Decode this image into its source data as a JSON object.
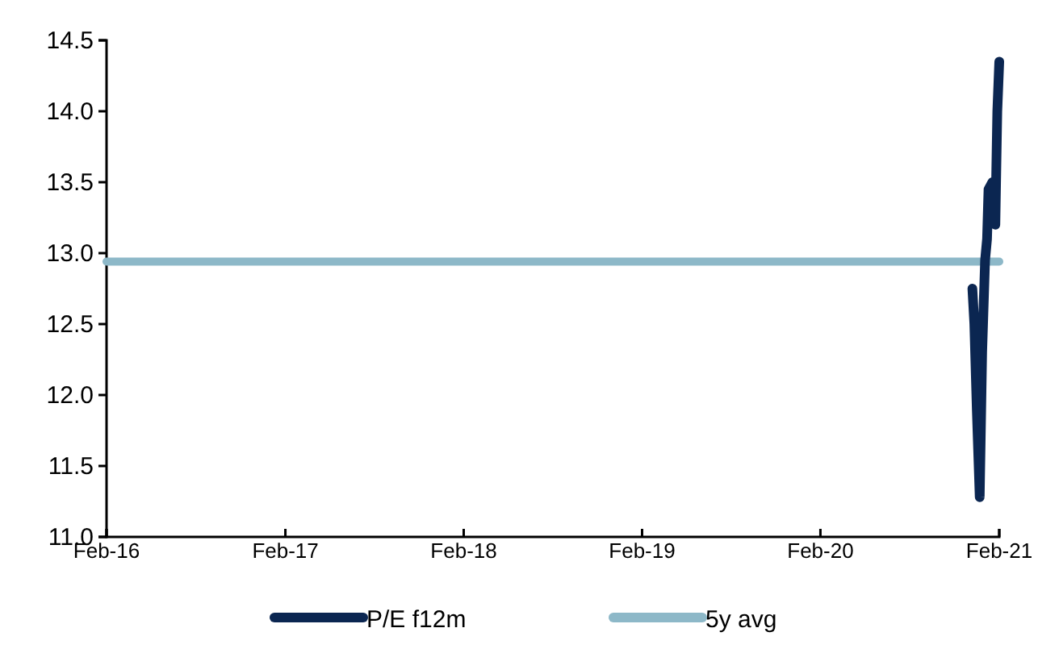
{
  "chart_data": {
    "type": "line",
    "x": [
      "2016-02-01",
      "2021-02-01"
    ],
    "series": [
      {
        "name": "P/E f12m",
        "color": "#0b2651",
        "x": [
          "2020-12-08",
          "2020-12-12",
          "2020-12-17",
          "2020-12-23",
          "2020-12-28",
          "2021-01-03",
          "2021-01-07",
          "2021-01-10",
          "2021-01-18",
          "2021-01-24",
          "2021-01-28",
          "2021-02-01"
        ],
        "values": [
          12.75,
          12.5,
          11.9,
          11.28,
          12.3,
          12.95,
          13.1,
          13.45,
          13.5,
          13.2,
          14.0,
          14.35
        ]
      },
      {
        "name": "5y avg",
        "color": "#8db8c8",
        "values": [
          12.94,
          12.94
        ]
      }
    ],
    "ylim": [
      11.0,
      14.5
    ],
    "yticks": [
      {
        "value": 11,
        "label": "11.0"
      },
      {
        "value": 11.5,
        "label": "11.5"
      },
      {
        "value": 12,
        "label": "12.0"
      },
      {
        "value": 12.5,
        "label": "12.5"
      },
      {
        "value": 13,
        "label": "13.0"
      },
      {
        "value": 13.5,
        "label": "13.5"
      },
      {
        "value": 14,
        "label": "14.0"
      },
      {
        "value": 14.5,
        "label": "14.5"
      }
    ],
    "xlim": [
      "2016-02-01",
      "2021-02-01"
    ],
    "xticks": [
      {
        "value": "2016-02-01",
        "label": "Feb-16"
      },
      {
        "value": "2017-02-01",
        "label": "Feb-17"
      },
      {
        "value": "2018-02-01",
        "label": "Feb-18"
      },
      {
        "value": "2019-02-01",
        "label": "Feb-19"
      },
      {
        "value": "2020-02-01",
        "label": "Feb-20"
      },
      {
        "value": "2021-02-01",
        "label": "Feb-21"
      }
    ],
    "grid": false,
    "legend": "bottom",
    "line_style": "solid",
    "marker": "none"
  }
}
